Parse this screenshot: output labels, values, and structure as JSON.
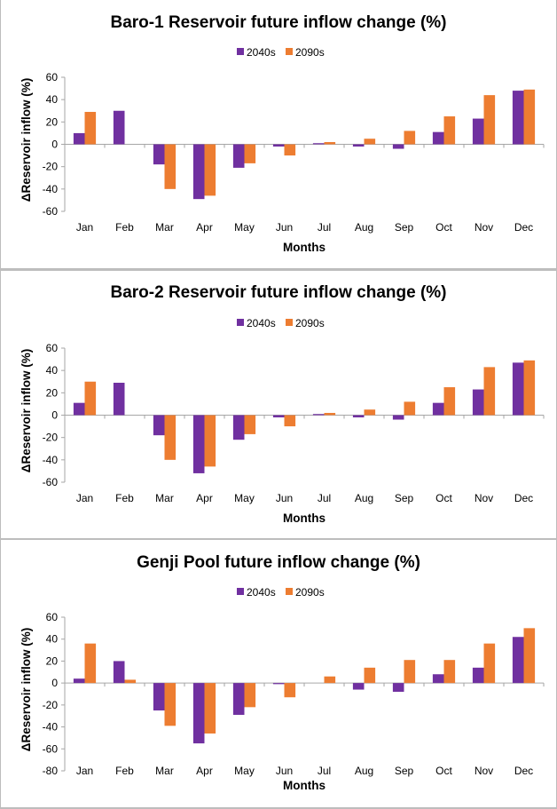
{
  "colors": {
    "series_2040s": "#7030a0",
    "series_2090s": "#ed7d31"
  },
  "chart_data": [
    {
      "type": "bar",
      "title": "Baro-1 Reservoir future inflow change (%)",
      "xlabel": "Months",
      "ylabel": "ΔReservoir inflow (%)",
      "ylim": [
        -60,
        60
      ],
      "yticks": [
        60,
        40,
        20,
        0,
        -20,
        -40,
        -60
      ],
      "legend": "top-center",
      "grid": false,
      "categories": [
        "Jan",
        "Feb",
        "Mar",
        "Apr",
        "May",
        "Jun",
        "Jul",
        "Aug",
        "Sep",
        "Oct",
        "Nov",
        "Dec"
      ],
      "series": [
        {
          "name": "2040s",
          "values": [
            10,
            30,
            -18,
            -49,
            -21,
            -2,
            1,
            -2,
            -4,
            11,
            23,
            48
          ]
        },
        {
          "name": "2090s",
          "values": [
            29,
            0,
            -40,
            -46,
            -17,
            -10,
            2,
            5,
            12,
            25,
            44,
            49
          ]
        }
      ]
    },
    {
      "type": "bar",
      "title": "Baro-2 Reservoir future inflow change (%)",
      "xlabel": "Months",
      "ylabel": "ΔReservoir inflow (%)",
      "ylim": [
        -60,
        60
      ],
      "yticks": [
        60,
        40,
        20,
        0,
        -20,
        -40,
        -60
      ],
      "legend": "top-center",
      "grid": false,
      "categories": [
        "Jan",
        "Feb",
        "Mar",
        "Apr",
        "May",
        "Jun",
        "Jul",
        "Aug",
        "Sep",
        "Oct",
        "Nov",
        "Dec"
      ],
      "series": [
        {
          "name": "2040s",
          "values": [
            11,
            29,
            -18,
            -52,
            -22,
            -2,
            1,
            -2,
            -4,
            11,
            23,
            47
          ]
        },
        {
          "name": "2090s",
          "values": [
            30,
            0,
            -40,
            -46,
            -17,
            -10,
            2,
            5,
            12,
            25,
            43,
            49
          ]
        }
      ]
    },
    {
      "type": "bar",
      "title": "Genji Pool future inflow change (%)",
      "xlabel": "Months",
      "ylabel": "ΔReservoir inflow (%)",
      "ylim": [
        -80,
        60
      ],
      "yticks": [
        60,
        40,
        20,
        0,
        -20,
        -40,
        -60,
        -80
      ],
      "legend": "top-center",
      "grid": false,
      "categories": [
        "Jan",
        "Feb",
        "Mar",
        "Apr",
        "May",
        "Jun",
        "Jul",
        "Aug",
        "Sep",
        "Oct",
        "Nov",
        "Dec"
      ],
      "series": [
        {
          "name": "2040s",
          "values": [
            4,
            20,
            -25,
            -55,
            -29,
            -1,
            0,
            -6,
            -8,
            8,
            14,
            42
          ]
        },
        {
          "name": "2090s",
          "values": [
            36,
            3,
            -39,
            -46,
            -22,
            -13,
            6,
            14,
            21,
            21,
            36,
            50
          ]
        }
      ]
    }
  ]
}
